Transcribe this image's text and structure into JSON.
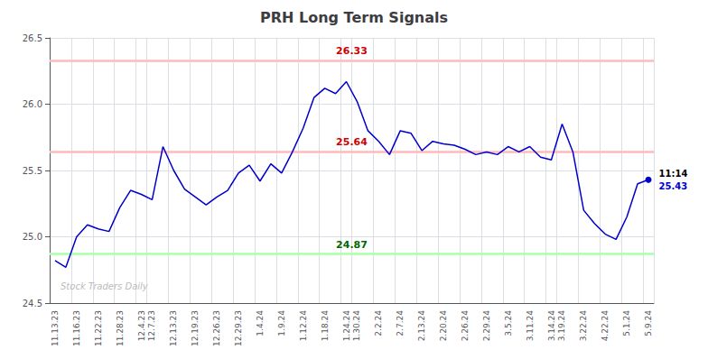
{
  "chart_data": {
    "type": "line",
    "title": "PRH Long Term Signals",
    "categories": [
      "11.13.23",
      null,
      "11.16.23",
      null,
      "11.22.23",
      null,
      "11.28.23",
      null,
      "12.4.23",
      "12.7.23",
      null,
      "12.13.23",
      null,
      "12.19.23",
      null,
      "12.26.23",
      null,
      "12.29.23",
      null,
      "1.4.24",
      null,
      "1.9.24",
      null,
      "1.12.24",
      null,
      "1.18.24",
      null,
      "1.24.24",
      "1.30.24",
      null,
      "2.2.24",
      null,
      "2.7.24",
      null,
      "2.13.24",
      null,
      "2.20.24",
      null,
      "2.26.24",
      null,
      "2.29.24",
      null,
      "3.5.24",
      null,
      "3.11.24",
      null,
      "3.14.24",
      "3.19.24",
      null,
      "3.22.24",
      null,
      "4.22.24",
      null,
      "5.1.24",
      null,
      "5.9.24"
    ],
    "values": [
      24.82,
      24.77,
      25.0,
      25.09,
      25.06,
      25.04,
      25.22,
      25.35,
      25.32,
      25.28,
      25.68,
      25.5,
      25.36,
      25.3,
      25.24,
      25.3,
      25.35,
      25.48,
      25.54,
      25.42,
      25.55,
      25.48,
      25.64,
      25.82,
      26.05,
      26.12,
      26.08,
      26.17,
      26.02,
      25.8,
      25.72,
      25.62,
      25.8,
      25.78,
      25.65,
      25.72,
      25.7,
      25.69,
      25.66,
      25.62,
      25.64,
      25.62,
      25.68,
      25.64,
      25.68,
      25.6,
      25.58,
      25.85,
      25.64,
      25.2,
      25.1,
      25.02,
      24.98,
      25.15,
      25.4,
      25.43
    ],
    "color": "#0000cc",
    "ylim": [
      24.5,
      26.5
    ],
    "yticks": [
      24.5,
      {
        "value": 25,
        "label": "25.0"
      },
      25.5,
      {
        "value": 26,
        "label": "26.0"
      },
      26.5
    ],
    "grid": true,
    "reference_lines": [
      {
        "value": 26.33,
        "label": "26.33",
        "color": "#ffbbbb",
        "label_color": "#cc0000"
      },
      {
        "value": 25.64,
        "label": "25.64",
        "color": "#ffbbbb",
        "label_color": "#cc0000"
      },
      {
        "value": 24.87,
        "label": "24.87",
        "color": "#aaffaa",
        "label_color": "#006600"
      }
    ],
    "annotations": [
      {
        "text": "11:14",
        "color": "#000000"
      },
      {
        "text": "25.43",
        "color": "#0000cc"
      }
    ],
    "watermark": {
      "text": "Stock Traders Daily",
      "color": "#bbbbbb"
    }
  }
}
